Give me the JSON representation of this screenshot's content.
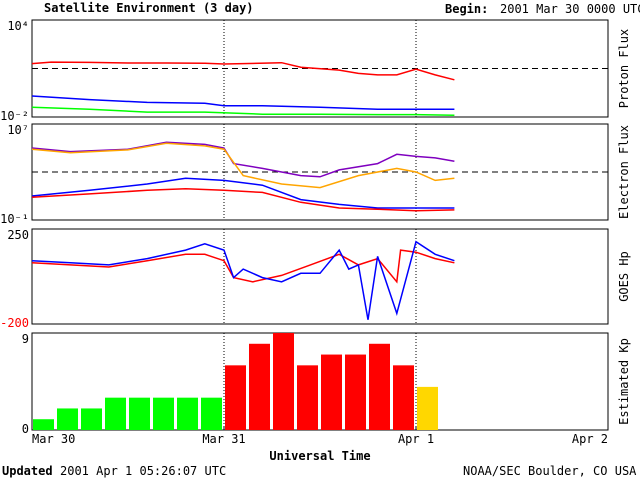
{
  "header": {
    "title": "Satellite Environment (3 day)",
    "begin_label": "Begin:",
    "begin_value": "2001 Mar 30 0000 UTC"
  },
  "footer": {
    "updated_label": "Updated",
    "updated_value": "2001 Apr  1 05:26:07 UTC",
    "credit": "NOAA/SEC Boulder, CO USA"
  },
  "x_axis": {
    "label": "Universal Time",
    "ticks": [
      "Mar 30",
      "Mar 31",
      "Apr 1",
      "Apr 2"
    ]
  },
  "colors": {
    "red": "#ff0000",
    "blue": "#0000ff",
    "green": "#00ff00",
    "purple": "#7f00bf",
    "orange": "#ffa500",
    "yellow": "#ffd700"
  },
  "chart_data": [
    {
      "type": "line",
      "id": "proton",
      "ylabel": "Proton Flux",
      "scale": "log",
      "ylim": [
        0.01,
        10000
      ],
      "tick_labels": [
        "10⁴",
        "10⁻²"
      ],
      "threshold": 10,
      "x_units": "days since 2001 Mar 30 0000 UTC",
      "series": [
        {
          "color": "red",
          "x": [
            0,
            0.1,
            0.3,
            0.5,
            0.7,
            0.9,
            1.0,
            1.1,
            1.3,
            1.4,
            1.6,
            1.7,
            1.8,
            1.9,
            2.0,
            2.1,
            2.2
          ],
          "y": [
            20,
            25,
            24,
            22,
            22,
            21,
            19,
            20,
            23,
            12,
            8,
            5,
            4,
            4,
            9,
            4,
            2
          ]
        },
        {
          "color": "blue",
          "x": [
            0,
            0.3,
            0.6,
            0.9,
            1.0,
            1.2,
            1.5,
            1.8,
            2.0,
            2.2
          ],
          "y": [
            0.2,
            0.12,
            0.08,
            0.07,
            0.05,
            0.05,
            0.04,
            0.03,
            0.03,
            0.03
          ]
        },
        {
          "color": "green",
          "x": [
            0,
            0.3,
            0.6,
            0.9,
            1.2,
            1.5,
            1.8,
            2.0,
            2.2
          ],
          "y": [
            0.04,
            0.03,
            0.02,
            0.02,
            0.015,
            0.015,
            0.014,
            0.014,
            0.013
          ]
        }
      ]
    },
    {
      "type": "line",
      "id": "electron",
      "ylabel": "Electron Flux",
      "scale": "log",
      "ylim": [
        0.1,
        10000000
      ],
      "tick_labels": [
        "10⁷",
        "10⁻¹"
      ],
      "threshold": 1000,
      "x_units": "days since 2001 Mar 30 0000 UTC",
      "series": [
        {
          "color": "purple",
          "x": [
            0,
            0.2,
            0.5,
            0.7,
            0.9,
            1.0,
            1.05,
            1.2,
            1.4,
            1.5,
            1.6,
            1.8,
            1.9,
            2.0,
            2.1,
            2.2
          ],
          "y": [
            100000,
            50000,
            80000,
            300000,
            200000,
            100000,
            5000,
            2000,
            500,
            400,
            1500,
            5000,
            30000,
            20000,
            15000,
            8000
          ]
        },
        {
          "color": "orange",
          "x": [
            0,
            0.2,
            0.5,
            0.7,
            0.9,
            1.0,
            1.1,
            1.3,
            1.5,
            1.7,
            1.9,
            2.0,
            2.1,
            2.2
          ],
          "y": [
            80000,
            40000,
            70000,
            250000,
            150000,
            80000,
            500,
            100,
            50,
            500,
            2000,
            1000,
            200,
            300
          ]
        },
        {
          "color": "blue",
          "x": [
            0,
            0.3,
            0.6,
            0.8,
            1.0,
            1.2,
            1.4,
            1.6,
            1.8,
            2.0,
            2.2
          ],
          "y": [
            10,
            30,
            100,
            300,
            200,
            80,
            5,
            2,
            1,
            1,
            1
          ]
        },
        {
          "color": "red",
          "x": [
            0,
            0.3,
            0.6,
            0.8,
            1.0,
            1.2,
            1.4,
            1.6,
            1.8,
            2.0,
            2.2
          ],
          "y": [
            8,
            15,
            30,
            40,
            30,
            20,
            3,
            1,
            0.8,
            0.6,
            0.7
          ]
        }
      ]
    },
    {
      "type": "line",
      "id": "goes_hp",
      "ylabel": "GOES Hp",
      "scale": "linear",
      "ylim": [
        -200,
        250
      ],
      "tick_labels": [
        "250",
        "-200"
      ],
      "x_units": "days since 2001 Mar 30 0000 UTC",
      "series": [
        {
          "color": "red",
          "x": [
            0,
            0.2,
            0.4,
            0.6,
            0.8,
            0.9,
            1.0,
            1.05,
            1.15,
            1.3,
            1.45,
            1.6,
            1.7,
            1.8,
            1.9,
            1.92,
            2.0,
            2.1,
            2.2
          ],
          "y": [
            90,
            80,
            70,
            100,
            130,
            130,
            100,
            20,
            0,
            30,
            80,
            130,
            80,
            110,
            0,
            150,
            140,
            110,
            90
          ]
        },
        {
          "color": "blue",
          "x": [
            0,
            0.2,
            0.4,
            0.6,
            0.8,
            0.9,
            1.0,
            1.05,
            1.1,
            1.2,
            1.3,
            1.4,
            1.5,
            1.6,
            1.65,
            1.7,
            1.75,
            1.8,
            1.9,
            2.0,
            2.1,
            2.2
          ],
          "y": [
            100,
            90,
            80,
            110,
            150,
            180,
            150,
            20,
            60,
            20,
            0,
            40,
            40,
            150,
            60,
            80,
            -180,
            120,
            -150,
            190,
            130,
            100
          ]
        }
      ]
    },
    {
      "type": "bar",
      "id": "kp",
      "ylabel": "Estimated Kp",
      "ylim": [
        0,
        9
      ],
      "tick_labels": [
        "9",
        "0"
      ],
      "bar_width_days": 0.125,
      "x_units": "days since 2001 Mar 30 0000 UTC",
      "x": [
        0.0625,
        0.1875,
        0.3125,
        0.4375,
        0.5625,
        0.6875,
        0.8125,
        0.9375,
        1.0625,
        1.1875,
        1.3125,
        1.4375,
        1.5625,
        1.6875,
        1.8125,
        1.9375,
        2.0625
      ],
      "values": [
        1,
        2,
        2,
        3,
        3,
        3,
        3,
        3,
        6,
        8,
        9,
        6,
        7,
        7,
        8,
        6,
        4
      ],
      "colors": [
        "green",
        "green",
        "green",
        "green",
        "green",
        "green",
        "green",
        "green",
        "red",
        "red",
        "red",
        "red",
        "red",
        "red",
        "red",
        "red",
        "yellow"
      ]
    }
  ]
}
